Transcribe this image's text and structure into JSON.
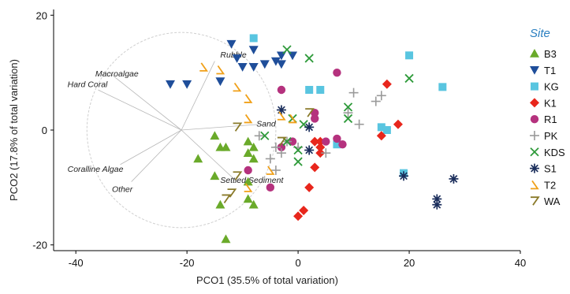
{
  "chart_data": {
    "type": "scatter",
    "title": "",
    "xlabel": "PCO1 (35.5% of total variation)",
    "ylabel": "PCO2 (17.8% of total variation)",
    "xlim": [
      -44,
      40
    ],
    "ylim": [
      -21,
      21
    ],
    "xticks": [
      -40,
      -20,
      0,
      20,
      40
    ],
    "yticks": [
      -20,
      0,
      20
    ],
    "grid": false,
    "legend_title": "Site",
    "legend_position": "right",
    "correlation_circle": {
      "center": [
        -21,
        0
      ],
      "radius": 17
    },
    "vectors": [
      {
        "label": "Rubble",
        "end": [
          -15,
          12
        ],
        "label_at": [
          -14,
          12.6
        ]
      },
      {
        "label": "Macroalgae",
        "end": [
          -34,
          10
        ],
        "label_at": [
          -36.5,
          9.3
        ]
      },
      {
        "label": "Hard Coral",
        "end": [
          -36,
          7
        ],
        "label_at": [
          -41.5,
          7.5
        ]
      },
      {
        "label": "Sand",
        "end": [
          -7,
          1
        ],
        "label_at": [
          -7.5,
          0.6
        ]
      },
      {
        "label": "Coralline Algae",
        "end": [
          -32,
          -6
        ],
        "label_at": [
          -41.5,
          -7.3
        ]
      },
      {
        "label": "Other",
        "end": [
          -30,
          -9
        ],
        "label_at": [
          -33.5,
          -10.8
        ]
      },
      {
        "label": "Settled Sediment",
        "end": [
          -11,
          -9
        ],
        "label_at": [
          -14,
          -9.2
        ]
      }
    ],
    "series": [
      {
        "name": "B3",
        "marker": "triangle-up",
        "color": "#6aaa2a",
        "points": [
          [
            -18,
            -5
          ],
          [
            -15,
            -1
          ],
          [
            -14,
            -3
          ],
          [
            -13,
            -3
          ],
          [
            -15,
            -8
          ],
          [
            -14,
            -13
          ],
          [
            -9,
            -2
          ],
          [
            -9,
            -4
          ],
          [
            -8,
            -3
          ],
          [
            -8,
            -5
          ],
          [
            -9,
            -9
          ],
          [
            -8,
            -13
          ],
          [
            -13,
            -19
          ],
          [
            -9,
            -12
          ]
        ]
      },
      {
        "name": "T1",
        "marker": "triangle-down",
        "color": "#1f4e9a",
        "points": [
          [
            -23,
            8
          ],
          [
            -20,
            8
          ],
          [
            -14,
            8.5
          ],
          [
            -12,
            15
          ],
          [
            -8,
            11
          ],
          [
            -8,
            14
          ],
          [
            -6,
            11.5
          ],
          [
            -4,
            12
          ],
          [
            -3,
            13
          ],
          [
            -3,
            11.5
          ],
          [
            -1,
            13
          ],
          [
            -10,
            11
          ],
          [
            -11,
            12.5
          ]
        ]
      },
      {
        "name": "KG",
        "marker": "square",
        "color": "#59c5e0",
        "points": [
          [
            -8,
            16
          ],
          [
            2,
            7
          ],
          [
            4,
            7
          ],
          [
            20,
            13
          ],
          [
            26,
            7.5
          ],
          [
            7,
            -2.5
          ],
          [
            15,
            0.5
          ],
          [
            16,
            0
          ],
          [
            19,
            -7.5
          ]
        ]
      },
      {
        "name": "K1",
        "marker": "diamond",
        "color": "#e8261c",
        "points": [
          [
            16,
            8
          ],
          [
            18,
            1
          ],
          [
            15,
            -1
          ],
          [
            4,
            -2
          ],
          [
            4,
            -4
          ],
          [
            3,
            -6.5
          ],
          [
            2,
            -10
          ],
          [
            0,
            -15
          ],
          [
            1,
            -14
          ],
          [
            3,
            -2
          ],
          [
            4,
            -3
          ]
        ]
      },
      {
        "name": "R1",
        "marker": "circle",
        "color": "#b5327e",
        "points": [
          [
            -3,
            7
          ],
          [
            7,
            10
          ],
          [
            3,
            2
          ],
          [
            5,
            -2
          ],
          [
            7,
            -1.5
          ],
          [
            8,
            -2.5
          ],
          [
            -9,
            -7
          ],
          [
            -5,
            -10
          ],
          [
            -3,
            -3
          ],
          [
            -1,
            -2
          ],
          [
            3,
            3
          ]
        ]
      },
      {
        "name": "PK",
        "marker": "plus",
        "color": "#9a9a9a",
        "points": [
          [
            10,
            6.5
          ],
          [
            14,
            5
          ],
          [
            15,
            6
          ],
          [
            11,
            1
          ],
          [
            9,
            3
          ],
          [
            -7,
            -1
          ],
          [
            -4,
            -3
          ],
          [
            -3,
            -4
          ],
          [
            -4,
            -7
          ],
          [
            -2,
            -2
          ],
          [
            0,
            -3
          ],
          [
            5,
            -4
          ],
          [
            -5,
            -5
          ]
        ]
      },
      {
        "name": "KDS",
        "marker": "x",
        "color": "#2e9a3a",
        "points": [
          [
            -2,
            14
          ],
          [
            2,
            12.5
          ],
          [
            20,
            9
          ],
          [
            9,
            4
          ],
          [
            9,
            2
          ],
          [
            1,
            1
          ],
          [
            -1,
            2
          ],
          [
            0,
            -3.5
          ],
          [
            0,
            -5.5
          ],
          [
            -6,
            -1
          ],
          [
            -2,
            -2
          ]
        ]
      },
      {
        "name": "S1",
        "marker": "asterisk",
        "color": "#1b2e5c",
        "points": [
          [
            -3,
            3.5
          ],
          [
            2,
            0.5
          ],
          [
            2,
            -3.5
          ],
          [
            19,
            -8
          ],
          [
            25,
            -12
          ],
          [
            25,
            -13
          ],
          [
            28,
            -8.5
          ]
        ]
      },
      {
        "name": "T2",
        "marker": "chevron-up",
        "color": "#f0a019",
        "points": [
          [
            -17,
            11
          ],
          [
            -14,
            10.5
          ],
          [
            -11,
            7.5
          ],
          [
            -9,
            5.5
          ],
          [
            -9,
            2
          ],
          [
            -3,
            2.5
          ],
          [
            -1,
            2
          ],
          [
            -5,
            -7
          ],
          [
            -9,
            -10
          ]
        ]
      },
      {
        "name": "WA",
        "marker": "chevron-down",
        "color": "#8a7a2a",
        "points": [
          [
            -11,
            0.5
          ],
          [
            -12,
            -11
          ],
          [
            -13,
            -12
          ],
          [
            -11,
            -8
          ],
          [
            -3,
            -2
          ],
          [
            2,
            3
          ]
        ]
      }
    ]
  }
}
